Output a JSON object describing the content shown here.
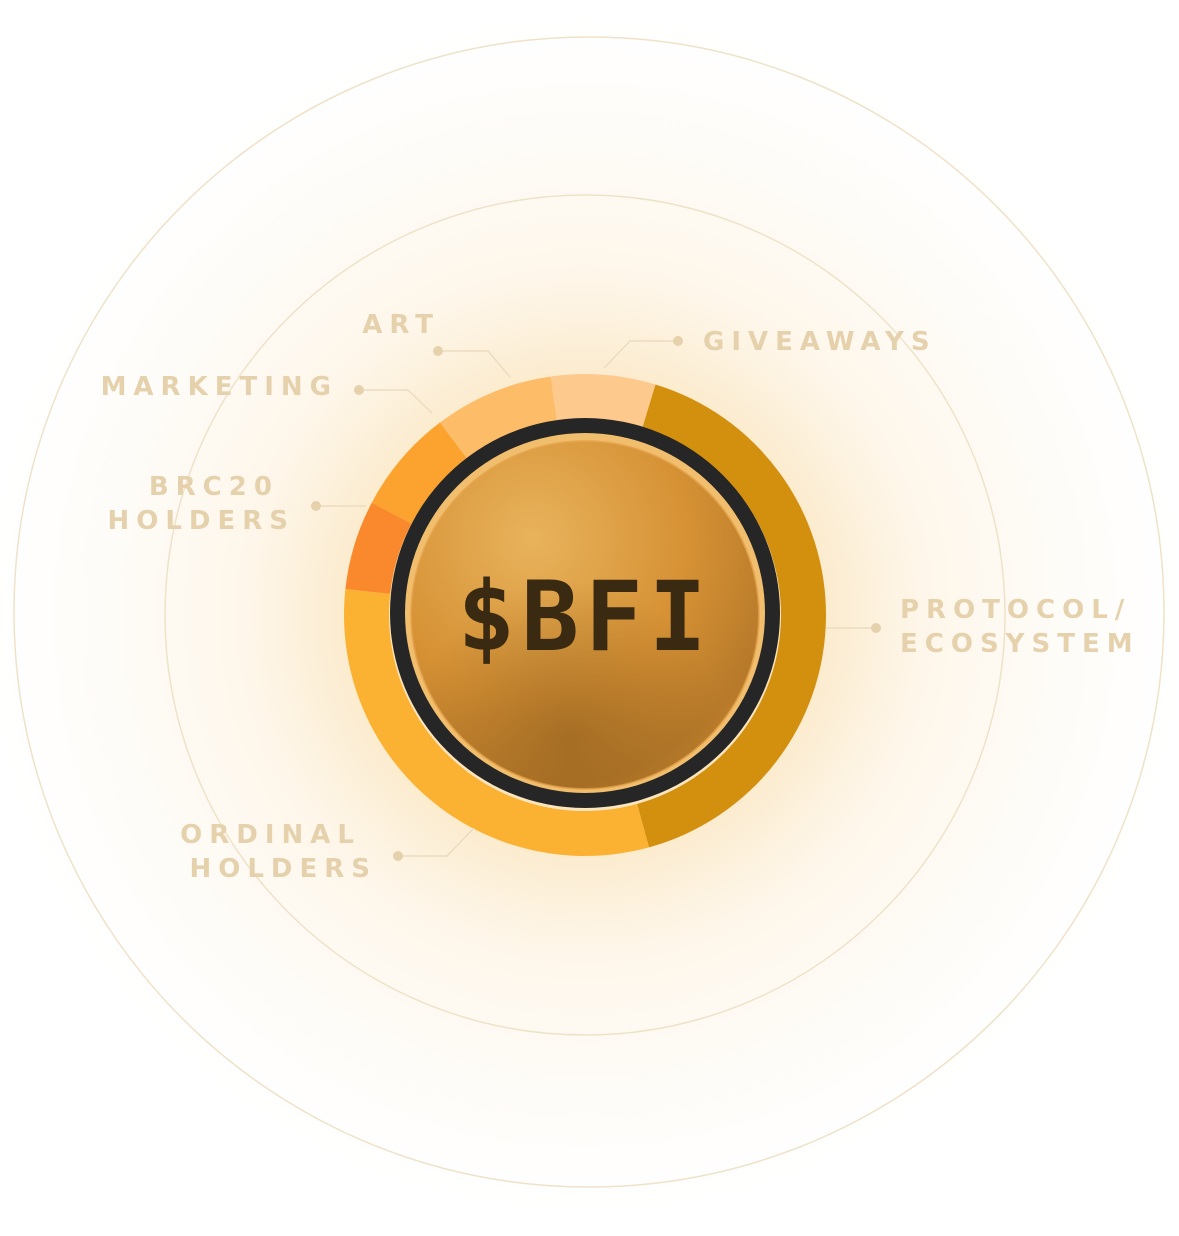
{
  "chart_data": {
    "type": "pie",
    "title": "$BFI",
    "categories": [
      "PROTOCOL/ ECOSYSTEM",
      "ORDINAL HOLDERS",
      "BRC20 HOLDERS",
      "MARKETING",
      "ART",
      "GIVEAWAYS"
    ],
    "values": [
      41,
      31,
      6,
      7,
      8,
      7
    ],
    "colors": [
      "#d38f0e",
      "#fbb232",
      "#f9892c",
      "#fba32e",
      "#fdbc68",
      "#fec98d"
    ],
    "value_unit": "percent (estimated from arc angles; no values printed)"
  },
  "labels": [
    {
      "lines": [
        "GIVEAWAYS"
      ]
    },
    {
      "lines": [
        "ART"
      ]
    },
    {
      "lines": [
        "MARKETING"
      ]
    },
    {
      "lines": [
        "BRC20",
        "HOLDERS"
      ]
    },
    {
      "lines": [
        "PROTOCOL/",
        "ECOSYSTEM"
      ]
    },
    {
      "lines": [
        "ORDINAL",
        "HOLDERS"
      ]
    }
  ],
  "coin": {
    "text": "$BFI"
  },
  "theme": {
    "label_color": "#e6d1ad",
    "line_color": "#ecdcbf",
    "ring_color": "#efe2c8",
    "bezel_color": "#262626"
  }
}
